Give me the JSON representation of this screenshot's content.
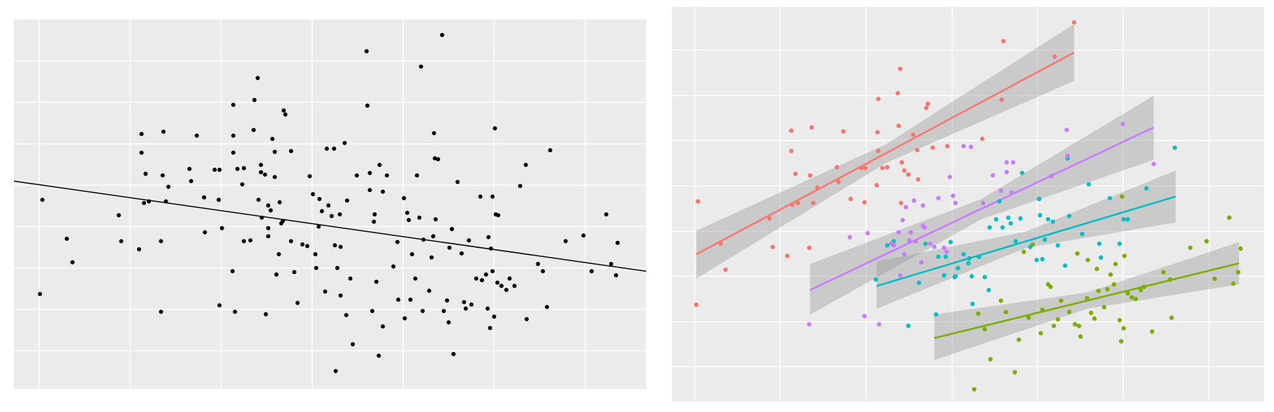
{
  "chart_data": [
    {
      "type": "scatter",
      "color": "#000000",
      "grid": true,
      "xlim": [
        17,
        795
      ],
      "ylim": [
        21,
        476
      ],
      "xticks": [
        48,
        160,
        272,
        384,
        496,
        608,
        720
      ],
      "yticks": [
        68,
        119,
        170,
        221,
        272,
        323,
        374,
        425
      ],
      "x": [
        52,
        49,
        82,
        89,
        146,
        149,
        171,
        174,
        174,
        179,
        177,
        183,
        201,
        200,
        204,
        198,
        198,
        207,
        233,
        235,
        242,
        251,
        252,
        264,
        270,
        269,
        273,
        270,
        287,
        287,
        287,
        292,
        286,
        289,
        298,
        300,
        300,
        308,
        312,
        313,
        317,
        318,
        321,
        321,
        326,
        322,
        327,
        330,
        330,
        330,
        333,
        335,
        338,
        338,
        344,
        346,
        348,
        349,
        351,
        343,
        340,
        358,
        358,
        362,
        366,
        372,
        378,
        381,
        385,
        388,
        389,
        392,
        393,
        396,
        400,
        402,
        404,
        408,
        411,
        412,
        413,
        415,
        418,
        419,
        419,
        424,
        426,
        427,
        431,
        434,
        439,
        451,
        452,
        455,
        455,
        458,
        460,
        461,
        463,
        466,
        467,
        471,
        471,
        476,
        484,
        489,
        490,
        497,
        498,
        501,
        503,
        505,
        507,
        511,
        513,
        516,
        518,
        520,
        521,
        528,
        531,
        533,
        534,
        535,
        536,
        539,
        544,
        546,
        550,
        552,
        553,
        556,
        558,
        563,
        568,
        571,
        573,
        577,
        580,
        586,
        591,
        593,
        598,
        600,
        601,
        603,
        604,
        606,
        606,
        608,
        609,
        610,
        612,
        613,
        617,
        623,
        627,
        633,
        640,
        647,
        648,
        662,
        668,
        673,
        677,
        696,
        718,
        728,
        746,
        752,
        758,
        760
      ],
      "y": [
        254,
        138,
        206,
        177,
        235,
        203,
        193,
        335,
        312,
        286,
        250,
        252,
        338,
        284,
        252,
        203,
        116,
        270,
        292,
        277,
        333,
        257,
        214,
        291,
        291,
        254,
        219,
        124,
        371,
        333,
        312,
        292,
        166,
        116,
        273,
        293,
        203,
        204,
        340,
        377,
        404,
        254,
        297,
        288,
        285,
        232,
        113,
        219,
        209,
        247,
        241,
        329,
        282,
        313,
        251,
        225,
        228,
        364,
        359,
        187,
        162,
        314,
        203,
        165,
        127,
        199,
        197,
        283,
        261,
        187,
        170,
        221,
        255,
        240,
        141,
        317,
        247,
        234,
        317,
        198,
        43,
        170,
        236,
        196,
        136,
        324,
        112,
        253,
        157,
        76,
        284,
        437,
        370,
        287,
        266,
        117,
        227,
        236,
        153,
        62,
        297,
        264,
        98,
        284,
        172,
        202,
        131,
        256,
        108,
        238,
        229,
        131,
        187,
        157,
        284,
        232,
        418,
        117,
        205,
        142,
        183,
        209,
        336,
        305,
        230,
        304,
        457,
        117,
        130,
        103,
        195,
        218,
        64,
        276,
        188,
        128,
        120,
        204,
        125,
        157,
        258,
        155,
        162,
        120,
        208,
        96,
        194,
        258,
        166,
        110,
        342,
        236,
        152,
        235,
        148,
        143,
        157,
        148,
        271,
        297,
        107,
        175,
        166,
        122,
        315,
        203,
        210,
        166,
        236,
        175,
        161,
        201
      ],
      "fit": {
        "x": [
          17,
          795
        ],
        "y": [
          277,
          166
        ]
      }
    },
    {
      "type": "scatter",
      "grid": true,
      "xlim": [
        827,
        1556
      ],
      "ylim": [
        6,
        491
      ],
      "xticks": [
        855,
        960,
        1066,
        1172,
        1277,
        1382,
        1488
      ],
      "yticks": [
        49,
        104,
        160,
        215,
        271,
        327,
        382,
        438
      ],
      "series": [
        {
          "color": "#f8766d",
          "x": [
            859,
            857,
            887,
            893,
            947,
            951,
            969,
            974,
            974,
            979,
            975,
            982,
            999,
            997,
            1001,
            996,
            1006,
            1030,
            1032,
            1038,
            1047,
            1060,
            1065,
            1064,
            1081,
            1080,
            1081,
            1086,
            1092,
            1079,
            1105,
            1106,
            1108,
            1109,
            1110,
            1113,
            1118,
            1124,
            1129,
            1130,
            1140,
            1142,
            1148,
            1166,
            1209,
            1233,
            1235,
            1298,
            1322
          ],
          "y": [
            252,
            125,
            200,
            168,
            231,
            196,
            185,
            339,
            314,
            286,
            248,
            250,
            343,
            284,
            250,
            195,
            269,
            294,
            276,
            338,
            255,
            293,
            293,
            251,
            378,
            337,
            314,
            293,
            294,
            272,
            385,
            345,
            415,
            250,
            300,
            290,
            285,
            334,
            315,
            279,
            367,
            372,
            318,
            320,
            329,
            377,
            449,
            430,
            472
          ],
          "fit": {
            "x": [
              857,
              1090,
              1322
            ],
            "y": [
              187,
              311,
              435
            ],
            "lower": [
              157,
              299,
              400
            ],
            "upper": [
              216,
              322,
              470
            ]
          }
        },
        {
          "color": "#7cae00",
          "x": [
            1199,
            1204,
            1212,
            1219,
            1232,
            1238,
            1249,
            1254,
            1260,
            1266,
            1271,
            1281,
            1283,
            1290,
            1293,
            1297,
            1302,
            1306,
            1316,
            1323,
            1326,
            1328,
            1330,
            1338,
            1339,
            1343,
            1347,
            1350,
            1352,
            1359,
            1363,
            1367,
            1371,
            1373,
            1378,
            1380,
            1381,
            1384,
            1383,
            1388,
            1393,
            1398,
            1404,
            1408,
            1418,
            1432,
            1440,
            1442,
            1465,
            1485,
            1495,
            1513,
            1518,
            1524,
            1527
          ],
          "y": [
            21,
            114,
            95,
            58,
            130,
            116,
            42,
            82,
            190,
            109,
            199,
            90,
            119,
            150,
            147,
            99,
            107,
            130,
            116,
            101,
            188,
            99,
            86,
            133,
            180,
            115,
            108,
            169,
            142,
            122,
            144,
            162,
            150,
            175,
            106,
            80,
            258,
            185,
            96,
            139,
            134,
            132,
            143,
            147,
            92,
            165,
            156,
            109,
            195,
            203,
            157,
            232,
            151,
            165,
            194
          ],
          "fit": {
            "x": [
              1150,
              1338,
              1525
            ],
            "y": [
              84,
              130,
              176
            ],
            "lower": [
              57,
              120,
              150
            ],
            "upper": [
              113,
              140,
              202
            ]
          }
        },
        {
          "color": "#00bfc4",
          "x": [
            1078,
            1092,
            1100,
            1118,
            1131,
            1139,
            1152,
            1155,
            1162,
            1164,
            1170,
            1175,
            1176,
            1179,
            1186,
            1192,
            1193,
            1196,
            1197,
            1205,
            1212,
            1217,
            1218,
            1226,
            1230,
            1234,
            1241,
            1244,
            1250,
            1256,
            1258,
            1268,
            1276,
            1279,
            1280,
            1283,
            1286,
            1290,
            1296,
            1302,
            1311,
            1314,
            1316,
            1332,
            1340,
            1353,
            1355,
            1366,
            1378,
            1383,
            1388,
            1411,
            1446
          ],
          "y": [
            156,
            198,
            203,
            99,
            152,
            200,
            113,
            184,
            161,
            184,
            202,
            159,
            160,
            170,
            187,
            176,
            182,
            160,
            126,
            184,
            159,
            143,
            220,
            230,
            252,
            220,
            232,
            225,
            203,
            231,
            287,
            196,
            180,
            255,
            235,
            181,
            205,
            230,
            227,
            198,
            173,
            305,
            234,
            212,
            273,
            200,
            183,
            256,
            200,
            230,
            230,
            268,
            318
          ],
          "fit": {
            "x": [
              1079,
              1263,
              1447
            ],
            "y": [
              148,
              203,
              258
            ],
            "lower": [
              120,
              195,
              226
            ],
            "upper": [
              178,
              215,
              290
            ]
          }
        },
        {
          "color": "#c77cff",
          "x": [
            996,
            1046,
            1064,
            1068,
            1082,
            1097,
            1100,
            1108,
            1106,
            1111,
            1113,
            1115,
            1119,
            1121,
            1125,
            1127,
            1134,
            1136,
            1138,
            1136,
            1145,
            1150,
            1155,
            1162,
            1165,
            1169,
            1173,
            1176,
            1186,
            1195,
            1210,
            1222,
            1232,
            1239,
            1239,
            1247,
            1245,
            1294,
            1313,
            1314,
            1382,
            1420
          ],
          "y": [
            101,
            208,
            111,
            213,
            101,
            200,
            198,
            161,
            214,
            229,
            187,
            245,
            204,
            214,
            253,
            203,
            177,
            222,
            220,
            247,
            200,
            196,
            256,
            195,
            190,
            282,
            259,
            250,
            320,
            319,
            250,
            284,
            265,
            288,
            300,
            300,
            263,
            283,
            340,
            308,
            347,
            298
          ],
          "fit": {
            "x": [
              997,
              1208,
              1420
            ],
            "y": [
              143,
              243,
              343
            ],
            "lower": [
              113,
              230,
              303
            ],
            "upper": [
              175,
              255,
              382
            ]
          }
        }
      ]
    }
  ]
}
